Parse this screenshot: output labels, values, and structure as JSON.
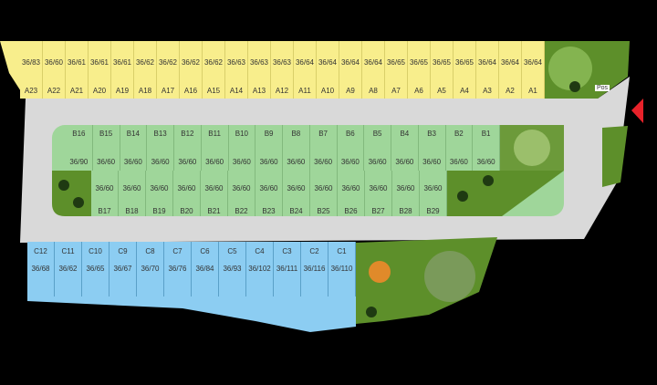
{
  "colors": {
    "row_a": "#f8ee8c",
    "row_b": "#9fd69a",
    "row_c": "#8ccdf2",
    "road": "#d9d9d9",
    "park": "#5d8f2a",
    "entrance_arrow": "#e8222a"
  },
  "entrance_label": "Pos",
  "row_a": [
    {
      "id": "A23",
      "size": "36/83"
    },
    {
      "id": "A22",
      "size": "36/60"
    },
    {
      "id": "A21",
      "size": "36/61"
    },
    {
      "id": "A20",
      "size": "36/61"
    },
    {
      "id": "A19",
      "size": "36/61"
    },
    {
      "id": "A18",
      "size": "36/62"
    },
    {
      "id": "A17",
      "size": "36/62"
    },
    {
      "id": "A16",
      "size": "36/62"
    },
    {
      "id": "A15",
      "size": "36/62"
    },
    {
      "id": "A14",
      "size": "36/63"
    },
    {
      "id": "A13",
      "size": "36/63"
    },
    {
      "id": "A12",
      "size": "36/63"
    },
    {
      "id": "A11",
      "size": "36/64"
    },
    {
      "id": "A10",
      "size": "36/64"
    },
    {
      "id": "A9",
      "size": "36/64"
    },
    {
      "id": "A8",
      "size": "36/64"
    },
    {
      "id": "A7",
      "size": "36/65"
    },
    {
      "id": "A6",
      "size": "36/65"
    },
    {
      "id": "A5",
      "size": "36/65"
    },
    {
      "id": "A4",
      "size": "36/65"
    },
    {
      "id": "A3",
      "size": "36/64"
    },
    {
      "id": "A2",
      "size": "36/64"
    },
    {
      "id": "A1",
      "size": "36/64"
    }
  ],
  "row_b_upper": [
    {
      "id": "B16",
      "size": "36/90"
    },
    {
      "id": "B15",
      "size": "36/60"
    },
    {
      "id": "B14",
      "size": "36/60"
    },
    {
      "id": "B13",
      "size": "36/60"
    },
    {
      "id": "B12",
      "size": "36/60"
    },
    {
      "id": "B11",
      "size": "36/60"
    },
    {
      "id": "B10",
      "size": "36/60"
    },
    {
      "id": "B9",
      "size": "36/60"
    },
    {
      "id": "B8",
      "size": "36/60"
    },
    {
      "id": "B7",
      "size": "36/60"
    },
    {
      "id": "B6",
      "size": "36/60"
    },
    {
      "id": "B5",
      "size": "36/60"
    },
    {
      "id": "B4",
      "size": "36/60"
    },
    {
      "id": "B3",
      "size": "36/60"
    },
    {
      "id": "B2",
      "size": "36/60"
    },
    {
      "id": "B1",
      "size": "36/60"
    }
  ],
  "row_b_lower": [
    {
      "id": "B17",
      "size": "36/60"
    },
    {
      "id": "B18",
      "size": "36/60"
    },
    {
      "id": "B19",
      "size": "36/60"
    },
    {
      "id": "B20",
      "size": "36/60"
    },
    {
      "id": "B21",
      "size": "36/60"
    },
    {
      "id": "B22",
      "size": "36/60"
    },
    {
      "id": "B23",
      "size": "36/60"
    },
    {
      "id": "B24",
      "size": "36/60"
    },
    {
      "id": "B25",
      "size": "36/60"
    },
    {
      "id": "B26",
      "size": "36/60"
    },
    {
      "id": "B27",
      "size": "36/60"
    },
    {
      "id": "B28",
      "size": "36/60"
    },
    {
      "id": "B29",
      "size": "36/60"
    }
  ],
  "row_c": [
    {
      "id": "C12",
      "size": "36/68"
    },
    {
      "id": "C11",
      "size": "36/62"
    },
    {
      "id": "C10",
      "size": "36/65"
    },
    {
      "id": "C9",
      "size": "36/67"
    },
    {
      "id": "C8",
      "size": "36/70"
    },
    {
      "id": "C7",
      "size": "36/76"
    },
    {
      "id": "C6",
      "size": "36/84"
    },
    {
      "id": "C5",
      "size": "36/93"
    },
    {
      "id": "C4",
      "size": "36/102"
    },
    {
      "id": "C3",
      "size": "36/111"
    },
    {
      "id": "C2",
      "size": "36/116"
    },
    {
      "id": "C1",
      "size": "36/110"
    }
  ]
}
